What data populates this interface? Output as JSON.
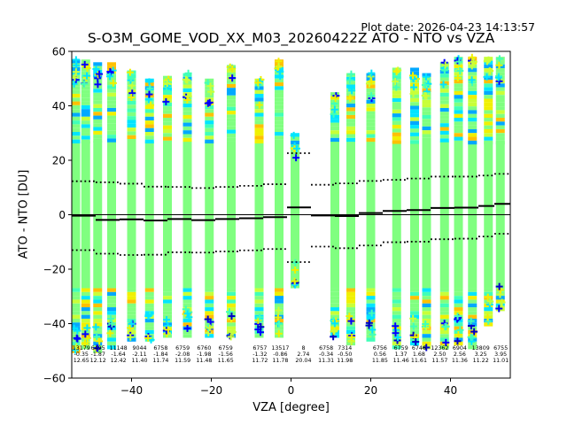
{
  "header": {
    "plot_date": "Plot date: 2026-04-23 14:13:57",
    "title": "S-O3M_GOME_VOD_XX_M03_20260422Z ATO - NTO vs VZA"
  },
  "chart_data": {
    "type": "scatter",
    "title": "S-O3M_GOME_VOD_XX_M03_20260422Z ATO - NTO vs VZA",
    "xlabel": "VZA [degree]",
    "ylabel": "ATO - NTO [DU]",
    "xlim": [
      -55,
      55
    ],
    "ylim": [
      -60,
      60
    ],
    "xticks": [
      -40,
      -20,
      0,
      20,
      40
    ],
    "xtick_labels": [
      "−40",
      "−20",
      "0",
      "20",
      "40"
    ],
    "yticks": [
      -60,
      -40,
      -20,
      0,
      20,
      40,
      60
    ],
    "ytick_labels": [
      "−60",
      "−40",
      "−20",
      "0",
      "20",
      "40",
      "60"
    ],
    "grid": false,
    "marker": "plus",
    "colors": {
      "bulk": "#80ff80",
      "cyan": "#00e5ff",
      "aqua": "#40ffb8",
      "sky": "#00a8ff",
      "yellow": "#f0f000",
      "lime": "#c8ff38",
      "orange": "#ffc000",
      "blue": "#0000ff",
      "navy": "#0000c8",
      "median": "#000000"
    },
    "columns": [
      {
        "vza": -54,
        "low": -50,
        "high": 57
      },
      {
        "vza": -51.5,
        "low": -49,
        "high": 57
      },
      {
        "vza": -48.5,
        "low": -50,
        "high": 56
      },
      {
        "vza": -45,
        "low": -48,
        "high": 56
      },
      {
        "vza": -40,
        "low": -46,
        "high": 53
      },
      {
        "vza": -35.5,
        "low": -46,
        "high": 50
      },
      {
        "vza": -31,
        "low": -44,
        "high": 51
      },
      {
        "vza": -26,
        "low": -44,
        "high": 52
      },
      {
        "vza": -20.5,
        "low": -44,
        "high": 50
      },
      {
        "vza": -15,
        "low": -45,
        "high": 55
      },
      {
        "vza": -8,
        "low": -44,
        "high": 50
      },
      {
        "vza": -3,
        "low": -45,
        "high": 57
      },
      {
        "vza": 1,
        "low": -27,
        "high": 30
      },
      {
        "vza": 11,
        "low": -45,
        "high": 45
      },
      {
        "vza": 15,
        "low": -47,
        "high": 52
      },
      {
        "vza": 20,
        "low": -46,
        "high": 52
      },
      {
        "vza": 26.5,
        "low": -48,
        "high": 54
      },
      {
        "vza": 31,
        "low": -47,
        "high": 54
      },
      {
        "vza": 34,
        "low": -49,
        "high": 52
      },
      {
        "vza": 38.5,
        "low": -49,
        "high": 56
      },
      {
        "vza": 42,
        "low": -47,
        "high": 58
      },
      {
        "vza": 45.5,
        "low": -48,
        "high": 58
      },
      {
        "vza": 49.5,
        "low": -40,
        "high": 58
      },
      {
        "vza": 52.5,
        "low": -35,
        "high": 58
      }
    ],
    "median_steps": [
      {
        "x0": -55,
        "x1": -49,
        "median": -0.35,
        "p_high": 12.3,
        "p_low": -13.0
      },
      {
        "x0": -49,
        "x1": -43,
        "median": -1.9,
        "p_high": 11.9,
        "p_low": -14.3
      },
      {
        "x0": -43,
        "x1": -37,
        "median": -1.7,
        "p_high": 11.4,
        "p_low": -14.8
      },
      {
        "x0": -37,
        "x1": -31,
        "median": -2.1,
        "p_high": 10.3,
        "p_low": -14.7
      },
      {
        "x0": -31,
        "x1": -25,
        "median": -1.6,
        "p_high": 10.2,
        "p_low": -13.8
      },
      {
        "x0": -25,
        "x1": -19,
        "median": -2.0,
        "p_high": 9.8,
        "p_low": -13.9
      },
      {
        "x0": -19,
        "x1": -13,
        "median": -1.6,
        "p_high": 10.2,
        "p_low": -13.5
      },
      {
        "x0": -13,
        "x1": -7,
        "median": -1.3,
        "p_high": 10.6,
        "p_low": -13.1
      },
      {
        "x0": -7,
        "x1": -1,
        "median": -0.9,
        "p_high": 11.2,
        "p_low": -12.6
      },
      {
        "x0": -1,
        "x1": 5,
        "median": 2.7,
        "p_high": 22.6,
        "p_low": -17.4
      },
      {
        "x0": 5,
        "x1": 11,
        "median": -0.3,
        "p_high": 11.0,
        "p_low": -11.7
      },
      {
        "x0": 11,
        "x1": 17,
        "median": -0.5,
        "p_high": 11.5,
        "p_low": -12.3
      },
      {
        "x0": 17,
        "x1": 23,
        "median": 0.6,
        "p_high": 12.4,
        "p_low": -11.3
      },
      {
        "x0": 23,
        "x1": 29,
        "median": 1.4,
        "p_high": 12.8,
        "p_low": -10.1
      },
      {
        "x0": 29,
        "x1": 35,
        "median": 1.7,
        "p_high": 13.3,
        "p_low": -9.9
      },
      {
        "x0": 35,
        "x1": 41,
        "median": 2.5,
        "p_high": 14.0,
        "p_low": -9.0
      },
      {
        "x0": 41,
        "x1": 47,
        "median": 2.6,
        "p_high": 14.0,
        "p_low": -8.8
      },
      {
        "x0": 47,
        "x1": 51,
        "median": 3.2,
        "p_high": 14.4,
        "p_low": -8.0
      },
      {
        "x0": 51,
        "x1": 55,
        "median": 4.0,
        "p_high": 15.0,
        "p_low": -7.0
      }
    ],
    "annotations": [
      {
        "vza": -52.6,
        "count": "13179",
        "mean": "-0.35",
        "std": "12.65"
      },
      {
        "vza": -48.4,
        "count": "6495",
        "mean": "-1.87",
        "std": "12.12"
      },
      {
        "vza": -43.3,
        "count": "11148",
        "mean": "-1.64",
        "std": "12.42"
      },
      {
        "vza": -38.0,
        "count": "9044",
        "mean": "-2.11",
        "std": "11.40"
      },
      {
        "vza": -32.7,
        "count": "6758",
        "mean": "-1.84",
        "std": "11.74"
      },
      {
        "vza": -27.2,
        "count": "6759",
        "mean": "-2.08",
        "std": "11.59"
      },
      {
        "vza": -21.8,
        "count": "6760",
        "mean": "-1.98",
        "std": "11.48"
      },
      {
        "vza": -16.4,
        "count": "6759",
        "mean": "-1.56",
        "std": "11.65"
      },
      {
        "vza": -7.8,
        "count": "6757",
        "mean": "-1.32",
        "std": "11.72"
      },
      {
        "vza": -2.7,
        "count": "13517",
        "mean": "-0.86",
        "std": "11.78"
      },
      {
        "vza": 3.1,
        "count": "8",
        "mean": "2.74",
        "std": "20.04"
      },
      {
        "vza": 8.8,
        "count": "6758",
        "mean": "-0.34",
        "std": "11.31"
      },
      {
        "vza": 13.5,
        "count": "7314",
        "mean": "-0.50",
        "std": "11.98"
      },
      {
        "vza": 22.3,
        "count": "6756",
        "mean": "0.56",
        "std": "11.85"
      },
      {
        "vza": 27.6,
        "count": "6759",
        "mean": "1.37",
        "std": "11.46"
      },
      {
        "vza": 32.1,
        "count": "6746",
        "mean": "1.68",
        "std": "11.61"
      },
      {
        "vza": 37.3,
        "count": "12362",
        "mean": "2.50",
        "std": "11.57"
      },
      {
        "vza": 42.3,
        "count": "6904",
        "mean": "2.56",
        "std": "11.36"
      },
      {
        "vza": 47.6,
        "count": "13809",
        "mean": "3.25",
        "std": "11.22"
      },
      {
        "vza": 52.6,
        "count": "6755",
        "mean": "3.95",
        "std": "11.01"
      }
    ]
  }
}
